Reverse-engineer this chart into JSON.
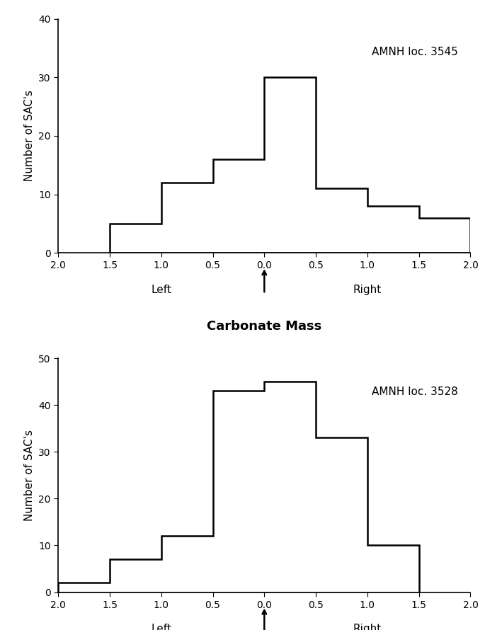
{
  "graph_a": {
    "label": "AMNH loc. 3545",
    "ylim": [
      0,
      40
    ],
    "yticks": [
      0,
      10,
      20,
      30,
      40
    ],
    "ylabel": "Number of SAC's",
    "xlim": [
      -2.0,
      2.0
    ],
    "bin_edges": [
      -1.5,
      -1.0,
      -0.5,
      0.0,
      0.5,
      1.0,
      1.5,
      2.0
    ],
    "counts": [
      5,
      12,
      16,
      30,
      11,
      8,
      6
    ],
    "tick_positions": [
      -2.0,
      -1.5,
      -1.0,
      -0.5,
      0.0,
      0.5,
      1.0,
      1.5,
      2.0
    ],
    "tick_labels": [
      "2.0",
      "1.5",
      "1.0",
      "0.5",
      "0.0",
      "0.5",
      "1.0",
      "1.5",
      "2.0"
    ]
  },
  "graph_b": {
    "label": "AMNH loc. 3528",
    "ylim": [
      0,
      50
    ],
    "yticks": [
      0,
      10,
      20,
      30,
      40,
      50
    ],
    "ylabel": "Number of SAC's",
    "xlim": [
      -2.0,
      2.0
    ],
    "bin_edges": [
      -2.0,
      -1.5,
      -1.0,
      -0.5,
      0.0,
      0.5,
      1.0,
      1.5
    ],
    "counts": [
      2,
      7,
      12,
      43,
      45,
      33,
      10
    ],
    "tick_positions": [
      -2.0,
      -1.5,
      -1.0,
      -0.5,
      0.0,
      0.5,
      1.0,
      1.5,
      2.0
    ],
    "tick_labels": [
      "2.0",
      "1.5",
      "1.0",
      "0.5",
      "0.0",
      "0.5",
      "1.0",
      "1.5",
      "2.0"
    ]
  },
  "xlabel": "Carbonate Mass",
  "left_label": "Left",
  "right_label": "Right",
  "line_color": "#000000",
  "background_color": "#ffffff",
  "linewidth": 1.8,
  "tick_fontsize": 10,
  "label_fontsize": 11,
  "xlabel_fontsize": 13
}
